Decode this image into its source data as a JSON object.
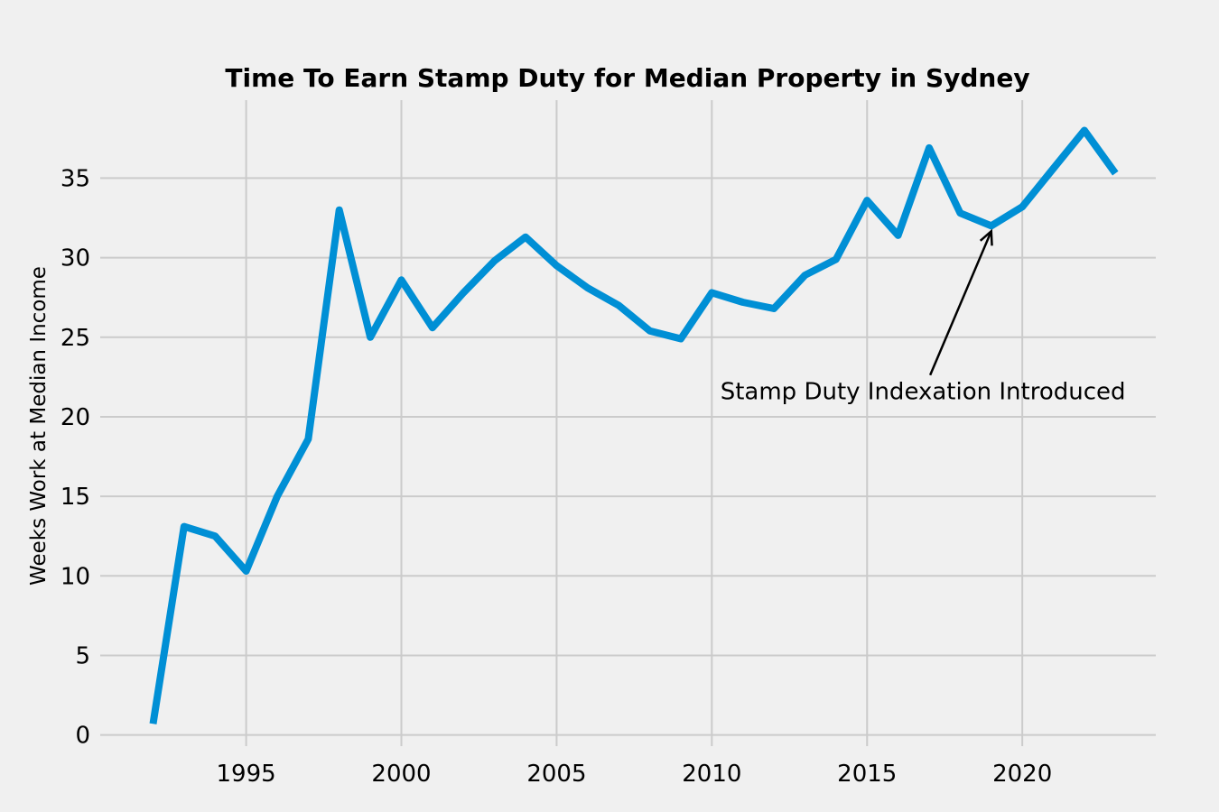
{
  "chart_data": {
    "type": "line",
    "title": "Time To Earn Stamp Duty for Median Property in Sydney",
    "xlabel": "",
    "ylabel": "Weeks Work at Median Income",
    "xlim": [
      1990.3,
      2024.3
    ],
    "ylim": [
      -0.7,
      39.9
    ],
    "xticks": [
      1995,
      2000,
      2005,
      2010,
      2015,
      2020
    ],
    "yticks": [
      0,
      5,
      10,
      15,
      20,
      25,
      30,
      35
    ],
    "grid": true,
    "line_color": "#008fd5",
    "x": [
      1992,
      1993,
      1994,
      1995,
      1996,
      1997,
      1998,
      1999,
      2000,
      2001,
      2002,
      2003,
      2004,
      2005,
      2006,
      2007,
      2008,
      2009,
      2010,
      2011,
      2012,
      2013,
      2014,
      2015,
      2016,
      2017,
      2018,
      2019,
      2020,
      2021,
      2022,
      2023
    ],
    "values": [
      0.7,
      13.1,
      12.5,
      10.3,
      15.0,
      18.6,
      33.0,
      25.0,
      28.6,
      25.6,
      27.8,
      29.8,
      31.3,
      29.5,
      28.1,
      27.0,
      25.4,
      24.9,
      27.8,
      27.2,
      26.8,
      28.9,
      29.9,
      33.6,
      31.4,
      36.9,
      32.8,
      32.0,
      33.2,
      35.6,
      38.0,
      35.3
    ],
    "annotation": {
      "text": "Stamp Duty Indexation Introduced",
      "xy": [
        2019,
        32.0
      ],
      "xytext": [
        2016.8,
        21.6
      ]
    }
  }
}
